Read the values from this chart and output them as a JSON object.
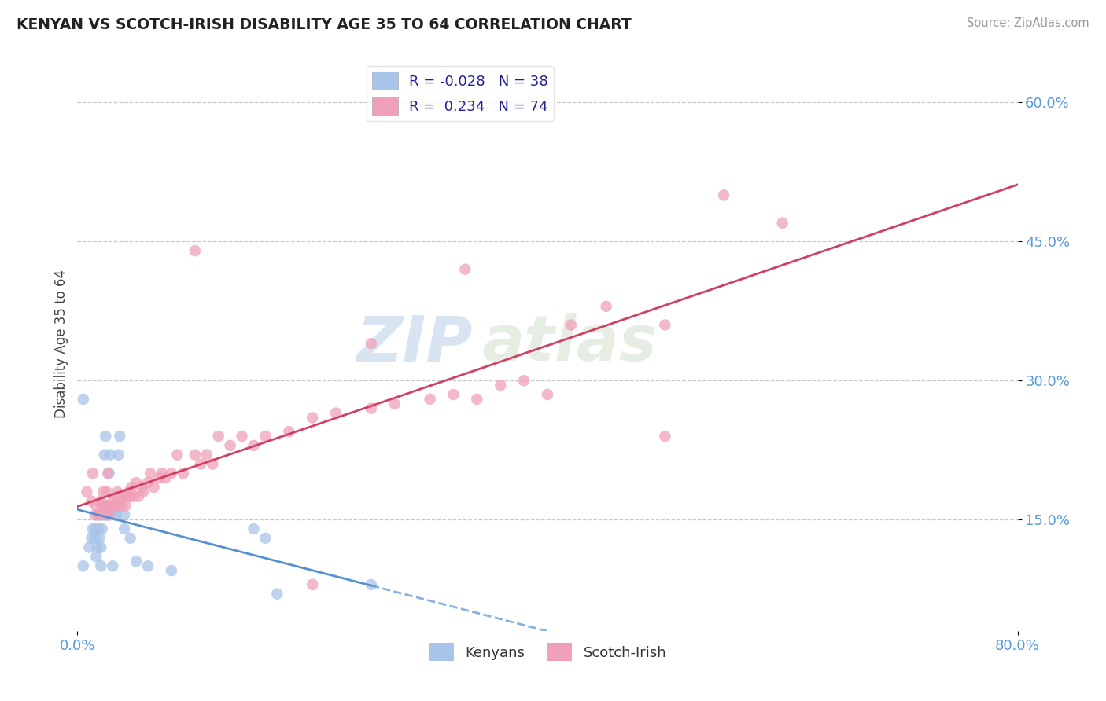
{
  "title": "KENYAN VS SCOTCH-IRISH DISABILITY AGE 35 TO 64 CORRELATION CHART",
  "source": "Source: ZipAtlas.com",
  "ylabel": "Disability Age 35 to 64",
  "xlim": [
    0.0,
    0.8
  ],
  "ylim": [
    0.03,
    0.65
  ],
  "ytick_positions": [
    0.15,
    0.3,
    0.45,
    0.6
  ],
  "ytick_labels": [
    "15.0%",
    "30.0%",
    "45.0%",
    "60.0%"
  ],
  "grid_color": "#c8c8c8",
  "background_color": "#ffffff",
  "kenyan_R": -0.028,
  "kenyan_N": 38,
  "scotch_R": 0.234,
  "scotch_N": 74,
  "kenyan_color": "#a8c4e8",
  "scotch_color": "#f0a0b8",
  "kenyan_line_color": "#5590d0",
  "scotch_line_color": "#d04060",
  "kenyan_x": [
    0.005,
    0.01,
    0.012,
    0.013,
    0.015,
    0.015,
    0.016,
    0.017,
    0.018,
    0.018,
    0.019,
    0.02,
    0.02,
    0.02,
    0.021,
    0.022,
    0.023,
    0.024,
    0.025,
    0.026,
    0.027,
    0.028,
    0.03,
    0.032,
    0.033,
    0.035,
    0.036,
    0.04,
    0.04,
    0.045,
    0.05,
    0.06,
    0.08,
    0.15,
    0.16,
    0.17,
    0.25,
    0.005
  ],
  "kenyan_y": [
    0.1,
    0.12,
    0.13,
    0.14,
    0.13,
    0.14,
    0.11,
    0.12,
    0.14,
    0.155,
    0.13,
    0.1,
    0.12,
    0.155,
    0.14,
    0.155,
    0.22,
    0.24,
    0.165,
    0.155,
    0.2,
    0.22,
    0.1,
    0.155,
    0.155,
    0.22,
    0.24,
    0.14,
    0.155,
    0.13,
    0.105,
    0.1,
    0.095,
    0.14,
    0.13,
    0.07,
    0.08,
    0.28
  ],
  "scotch_x": [
    0.008,
    0.012,
    0.013,
    0.015,
    0.016,
    0.018,
    0.02,
    0.021,
    0.022,
    0.022,
    0.024,
    0.025,
    0.026,
    0.026,
    0.027,
    0.028,
    0.03,
    0.031,
    0.032,
    0.033,
    0.034,
    0.035,
    0.038,
    0.038,
    0.04,
    0.041,
    0.042,
    0.044,
    0.045,
    0.046,
    0.048,
    0.05,
    0.052,
    0.055,
    0.056,
    0.06,
    0.062,
    0.065,
    0.07,
    0.072,
    0.075,
    0.08,
    0.085,
    0.09,
    0.1,
    0.105,
    0.11,
    0.115,
    0.12,
    0.13,
    0.14,
    0.15,
    0.16,
    0.18,
    0.2,
    0.22,
    0.25,
    0.27,
    0.3,
    0.32,
    0.34,
    0.36,
    0.38,
    0.4,
    0.42,
    0.45,
    0.5,
    0.55,
    0.1,
    0.25,
    0.5,
    0.33,
    0.2,
    0.6
  ],
  "scotch_y": [
    0.18,
    0.17,
    0.2,
    0.155,
    0.165,
    0.155,
    0.17,
    0.165,
    0.165,
    0.18,
    0.155,
    0.18,
    0.165,
    0.2,
    0.155,
    0.165,
    0.17,
    0.165,
    0.165,
    0.175,
    0.18,
    0.165,
    0.175,
    0.165,
    0.175,
    0.165,
    0.175,
    0.18,
    0.175,
    0.185,
    0.175,
    0.19,
    0.175,
    0.185,
    0.18,
    0.19,
    0.2,
    0.185,
    0.195,
    0.2,
    0.195,
    0.2,
    0.22,
    0.2,
    0.22,
    0.21,
    0.22,
    0.21,
    0.24,
    0.23,
    0.24,
    0.23,
    0.24,
    0.245,
    0.26,
    0.265,
    0.27,
    0.275,
    0.28,
    0.285,
    0.28,
    0.295,
    0.3,
    0.285,
    0.36,
    0.38,
    0.36,
    0.5,
    0.44,
    0.34,
    0.24,
    0.42,
    0.08,
    0.47
  ]
}
